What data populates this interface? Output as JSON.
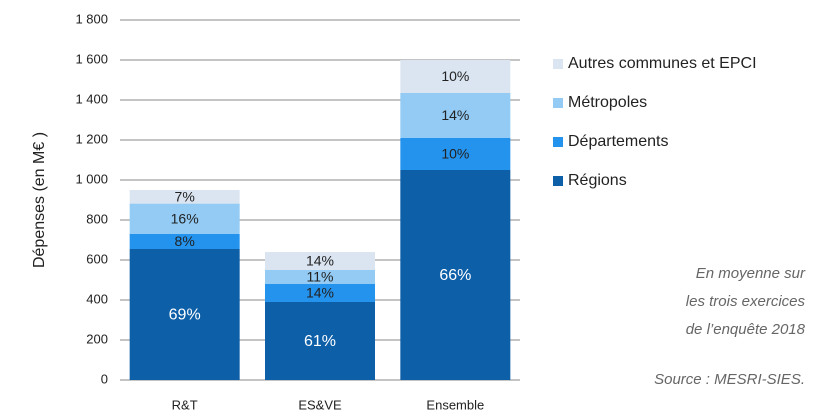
{
  "chart_data": {
    "type": "stacked_bar",
    "y_label": "Dépenses (en M€ )",
    "categories": [
      "R&T",
      "ES&VE",
      "Ensemble"
    ],
    "series": [
      {
        "name": "Régions",
        "color": "#0d5fa8",
        "values": [
          655,
          390,
          1050
        ],
        "share_labels": [
          "69%",
          "61%",
          "66%"
        ]
      },
      {
        "name": "Départements",
        "color": "#2493ee",
        "values": [
          75,
          90,
          160
        ],
        "share_labels": [
          "8%",
          "14%",
          "10%"
        ]
      },
      {
        "name": "Métropoles",
        "color": "#93cbf4",
        "values": [
          152,
          70,
          225
        ],
        "share_labels": [
          "16%",
          "11%",
          "14%"
        ]
      },
      {
        "name": "Autres communes et EPCI",
        "color": "#dbe5f1",
        "values": [
          68,
          90,
          165
        ],
        "share_labels": [
          "7%",
          "14%",
          "10%"
        ]
      }
    ],
    "ylim": [
      0,
      1800
    ],
    "yticks": [
      0,
      200,
      400,
      600,
      800,
      {
        "value": 1000,
        "label": "1 000"
      },
      {
        "value": 1200,
        "label": "1 200"
      },
      {
        "value": 1400,
        "label": "1 400"
      },
      {
        "value": 1600,
        "label": "1 600"
      },
      {
        "value": 1800,
        "label": "1 800"
      }
    ],
    "grid": true,
    "annotations": [
      "En moyenne sur",
      "les trois exercices",
      "de l’enquête 2018",
      "Source : MESRI-SIES."
    ]
  }
}
